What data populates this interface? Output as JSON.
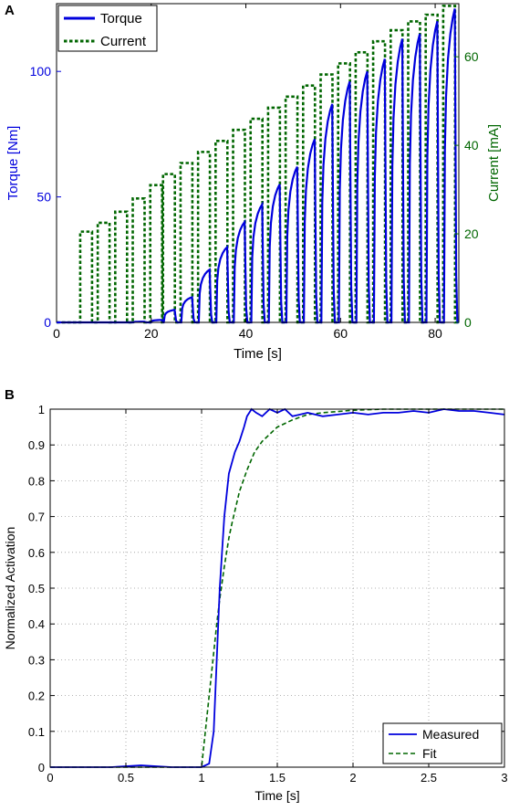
{
  "chart_data": [
    {
      "panel_label": "A",
      "type": "line",
      "xlabel": "Time [s]",
      "ylabel_left": "Torque [Nm]",
      "ylabel_right": "Current [mA]",
      "xlim": [
        0,
        85
      ],
      "ylim_left": [
        0,
        127
      ],
      "ylim_right": [
        0,
        72
      ],
      "xticks": [
        0,
        20,
        40,
        60,
        80
      ],
      "yticks_left": [
        0,
        50,
        100
      ],
      "yticks_right": [
        0,
        20,
        40,
        60
      ],
      "grid": false,
      "legend": "top-left",
      "colors": {
        "torque": "#0000dd",
        "current": "#006600"
      },
      "series": [
        {
          "name": "Torque",
          "axis": "left",
          "style": "solid",
          "pulses": [
            {
              "start": 5.0,
              "peak": 0.0
            },
            {
              "start": 8.7,
              "peak": 0.0
            },
            {
              "start": 12.4,
              "peak": 0.0
            },
            {
              "start": 16.1,
              "peak": 0.3
            },
            {
              "start": 19.8,
              "peak": 1.0
            },
            {
              "start": 22.5,
              "peak": 5.0
            },
            {
              "start": 26.2,
              "peak": 10.0
            },
            {
              "start": 29.9,
              "peak": 21.0
            },
            {
              "start": 33.6,
              "peak": 30.0
            },
            {
              "start": 37.3,
              "peak": 40.0
            },
            {
              "start": 41.0,
              "peak": 47.0
            },
            {
              "start": 44.7,
              "peak": 55.0
            },
            {
              "start": 48.4,
              "peak": 62.0
            },
            {
              "start": 52.1,
              "peak": 73.0
            },
            {
              "start": 55.8,
              "peak": 87.0
            },
            {
              "start": 59.5,
              "peak": 96.0
            },
            {
              "start": 63.2,
              "peak": 100.0
            },
            {
              "start": 66.9,
              "peak": 105.0
            },
            {
              "start": 70.6,
              "peak": 113.0
            },
            {
              "start": 74.3,
              "peak": 115.0
            },
            {
              "start": 78.0,
              "peak": 120.0
            },
            {
              "start": 81.7,
              "peak": 125.0
            }
          ],
          "pulse_width": 2.5
        },
        {
          "name": "Current",
          "axis": "right",
          "style": "dashed",
          "pulses": [
            {
              "start": 5.0,
              "level": 20.5
            },
            {
              "start": 8.7,
              "level": 22.5
            },
            {
              "start": 12.4,
              "level": 25.0
            },
            {
              "start": 16.1,
              "level": 28.0
            },
            {
              "start": 19.8,
              "level": 31.0
            },
            {
              "start": 22.5,
              "level": 33.5
            },
            {
              "start": 26.2,
              "level": 36.0
            },
            {
              "start": 29.9,
              "level": 38.5
            },
            {
              "start": 33.6,
              "level": 41.0
            },
            {
              "start": 37.3,
              "level": 43.5
            },
            {
              "start": 41.0,
              "level": 46.0
            },
            {
              "start": 44.7,
              "level": 48.5
            },
            {
              "start": 48.4,
              "level": 51.0
            },
            {
              "start": 52.1,
              "level": 53.5
            },
            {
              "start": 55.8,
              "level": 56.0
            },
            {
              "start": 59.5,
              "level": 58.5
            },
            {
              "start": 63.2,
              "level": 61.0
            },
            {
              "start": 66.9,
              "level": 63.5
            },
            {
              "start": 70.6,
              "level": 66.0
            },
            {
              "start": 74.3,
              "level": 68.0
            },
            {
              "start": 78.0,
              "level": 69.5
            },
            {
              "start": 81.7,
              "level": 71.5
            }
          ],
          "pulse_width": 2.5
        }
      ]
    },
    {
      "panel_label": "B",
      "type": "line",
      "xlabel": "Time [s]",
      "ylabel": "Normalized Activation",
      "xlim": [
        0,
        3
      ],
      "ylim": [
        0,
        1
      ],
      "xticks": [
        0,
        0.5,
        1,
        1.5,
        2,
        2.5,
        3
      ],
      "yticks": [
        0,
        0.1,
        0.2,
        0.3,
        0.4,
        0.5,
        0.6,
        0.7,
        0.8,
        0.9,
        1
      ],
      "grid": true,
      "legend": "bottom-right",
      "colors": {
        "measured": "#0000dd",
        "fit": "#006600"
      },
      "series": [
        {
          "name": "Measured",
          "style": "solid",
          "x": [
            0,
            0.2,
            0.4,
            0.6,
            0.8,
            1.0,
            1.05,
            1.08,
            1.1,
            1.12,
            1.15,
            1.18,
            1.2,
            1.22,
            1.25,
            1.28,
            1.3,
            1.33,
            1.36,
            1.4,
            1.45,
            1.5,
            1.55,
            1.6,
            1.65,
            1.7,
            1.8,
            1.9,
            2.0,
            2.1,
            2.2,
            2.3,
            2.4,
            2.5,
            2.6,
            2.7,
            2.8,
            2.9,
            3.0
          ],
          "y": [
            0.0,
            0.0,
            0.0,
            0.005,
            0.0,
            0.0,
            0.01,
            0.1,
            0.3,
            0.5,
            0.7,
            0.82,
            0.85,
            0.88,
            0.91,
            0.95,
            0.98,
            1.0,
            0.99,
            0.98,
            1.0,
            0.99,
            1.0,
            0.98,
            0.985,
            0.99,
            0.98,
            0.985,
            0.99,
            0.985,
            0.99,
            0.99,
            0.995,
            0.99,
            1.0,
            0.995,
            0.995,
            0.99,
            0.985
          ]
        },
        {
          "name": "Fit",
          "style": "dashed",
          "x": [
            0,
            0.5,
            1.0,
            1.02,
            1.05,
            1.08,
            1.1,
            1.12,
            1.15,
            1.18,
            1.2,
            1.25,
            1.3,
            1.35,
            1.4,
            1.5,
            1.6,
            1.7,
            1.8,
            2.0,
            2.2,
            2.5,
            3.0
          ],
          "y": [
            0.0,
            0.0,
            0.0,
            0.08,
            0.2,
            0.32,
            0.4,
            0.47,
            0.56,
            0.64,
            0.68,
            0.77,
            0.83,
            0.88,
            0.91,
            0.95,
            0.97,
            0.985,
            0.99,
            0.997,
            1.0,
            1.0,
            1.0
          ]
        }
      ]
    }
  ]
}
